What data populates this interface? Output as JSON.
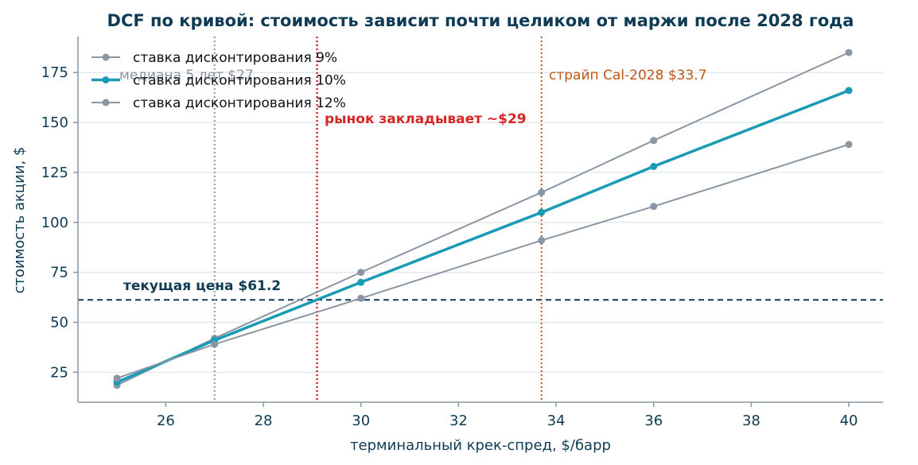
{
  "chart_data": {
    "type": "line",
    "title": "DCF по кривой: стоимость зависит почти целиком от маржи после 2028 года",
    "xlabel": "терминальный крек-спред, $/барр",
    "ylabel": "стоимость акции, $",
    "xlim": [
      24.2,
      40.7
    ],
    "ylim": [
      10,
      193
    ],
    "xticks": [
      26,
      28,
      30,
      32,
      34,
      36,
      38,
      40
    ],
    "yticks": [
      25,
      50,
      75,
      100,
      125,
      150,
      175
    ],
    "grid": "horizontal",
    "legend_position": "top-left",
    "x": [
      25,
      27,
      30,
      33.7,
      36,
      40
    ],
    "series": [
      {
        "name": "ставка дисконтирования 9%",
        "values": [
          18.5,
          42,
          75,
          115,
          141,
          185
        ],
        "color": "#8a96a3",
        "emphasis": false
      },
      {
        "name": "ставка дисконтирования 10%",
        "values": [
          20,
          41,
          70,
          105,
          128,
          166
        ],
        "color": "#1a9bb5",
        "emphasis": true
      },
      {
        "name": "ставка дисконтирования 12%",
        "values": [
          22,
          39,
          62,
          91,
          108,
          139
        ],
        "color": "#8a96a3",
        "emphasis": false
      }
    ],
    "reference_lines": [
      {
        "orientation": "horizontal",
        "value": 61.2,
        "style": "dashed",
        "color": "#0f3b55",
        "label": "текущая цена $61.2"
      },
      {
        "orientation": "vertical",
        "value": 27,
        "style": "dotted",
        "color": "#8a96a3",
        "label": "медиана 5 лет $27"
      },
      {
        "orientation": "vertical",
        "value": 29.1,
        "style": "dotted",
        "color": "#d62728",
        "label": "рынок закладывает ~$29"
      },
      {
        "orientation": "vertical",
        "value": 33.7,
        "style": "dotted",
        "color": "#c0561a",
        "label": "страйп Cal-2028 $33.7"
      }
    ],
    "colors": {
      "title": "#0f3b55",
      "axis": "#0f3b55",
      "grid": "#e6e9ec",
      "spine": "#8a96a3"
    }
  }
}
